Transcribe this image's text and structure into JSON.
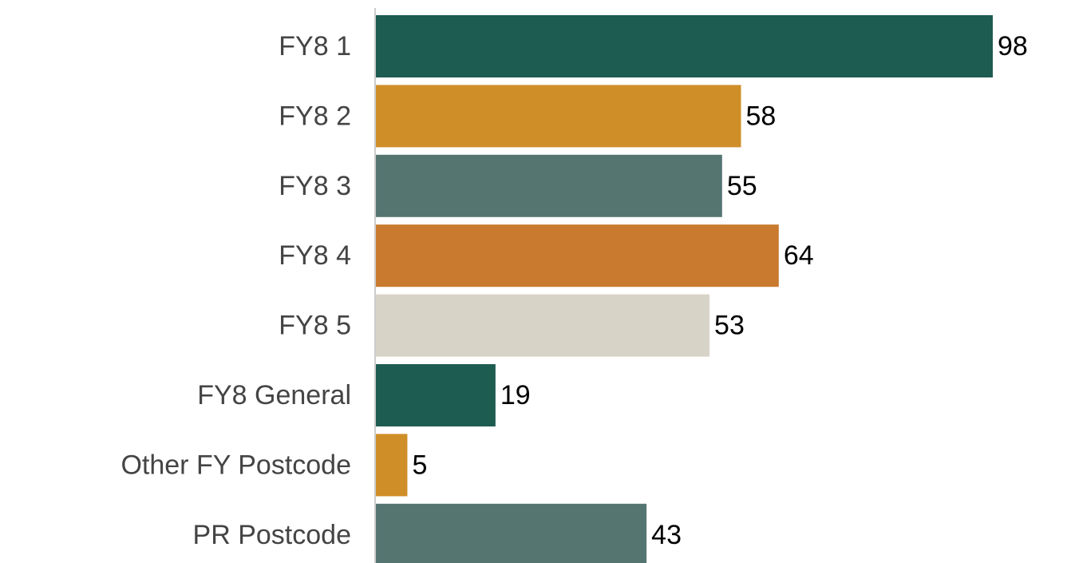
{
  "chart_data": {
    "type": "bar",
    "orientation": "horizontal",
    "categories": [
      "FY8 1",
      "FY8 2",
      "FY8 3",
      "FY8 4",
      "FY8 5",
      "FY8 General",
      "Other FY Postcode",
      "PR Postcode"
    ],
    "values": [
      98,
      58,
      55,
      64,
      53,
      19,
      5,
      43
    ],
    "colors": [
      "#1d5c50",
      "#cf8e27",
      "#557571",
      "#c97a2e",
      "#d8d3c7",
      "#1d5c50",
      "#cf8e27",
      "#557571"
    ]
  }
}
